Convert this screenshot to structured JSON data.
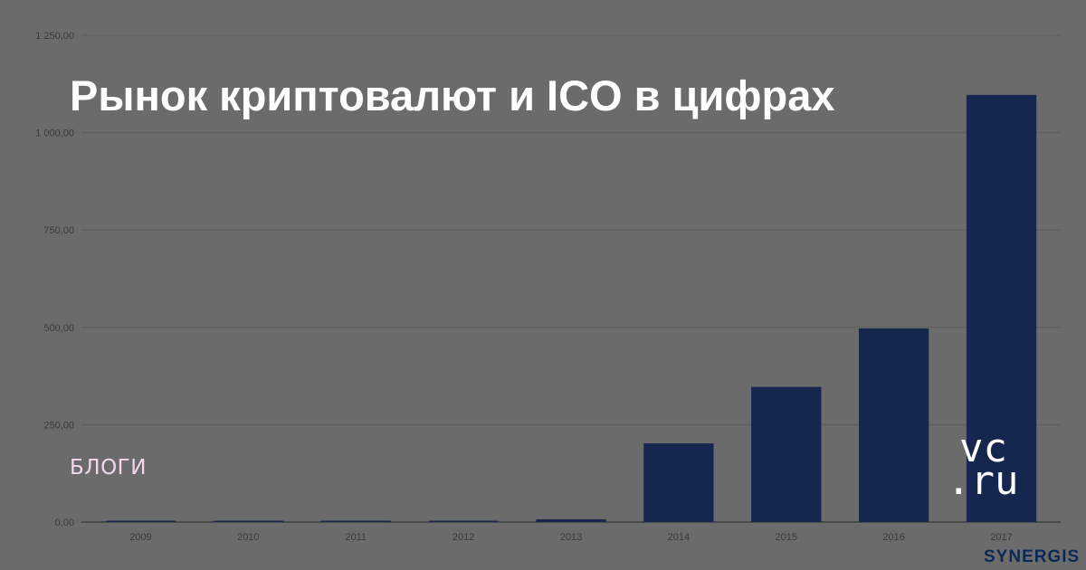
{
  "title": "Рынок криптовалют и ICO в цифрах",
  "section_label": "БЛОГИ",
  "logos": {
    "vc_line1": "vc",
    "vc_line2": ".ru",
    "brand": "SYNERGIS"
  },
  "colors": {
    "background": "#6b6b6b",
    "bar": "#15264f",
    "grid": "#5c5c5c",
    "axis_text": "#3a3a3a"
  },
  "chart_data": {
    "type": "bar",
    "categories": [
      "2009",
      "2010",
      "2011",
      "2012",
      "2013",
      "2014",
      "2015",
      "2016",
      "2017"
    ],
    "values": [
      0,
      1,
      3,
      3,
      7,
      202,
      347,
      497,
      1097
    ],
    "ylim": [
      0,
      1250
    ],
    "yticks": [
      0,
      250,
      500,
      750,
      1000,
      1250
    ],
    "ytick_labels": [
      "0,00",
      "250,00",
      "500,00",
      "750,00",
      "1 000,00",
      "1 250,00"
    ],
    "grid": true,
    "legend": "none"
  }
}
